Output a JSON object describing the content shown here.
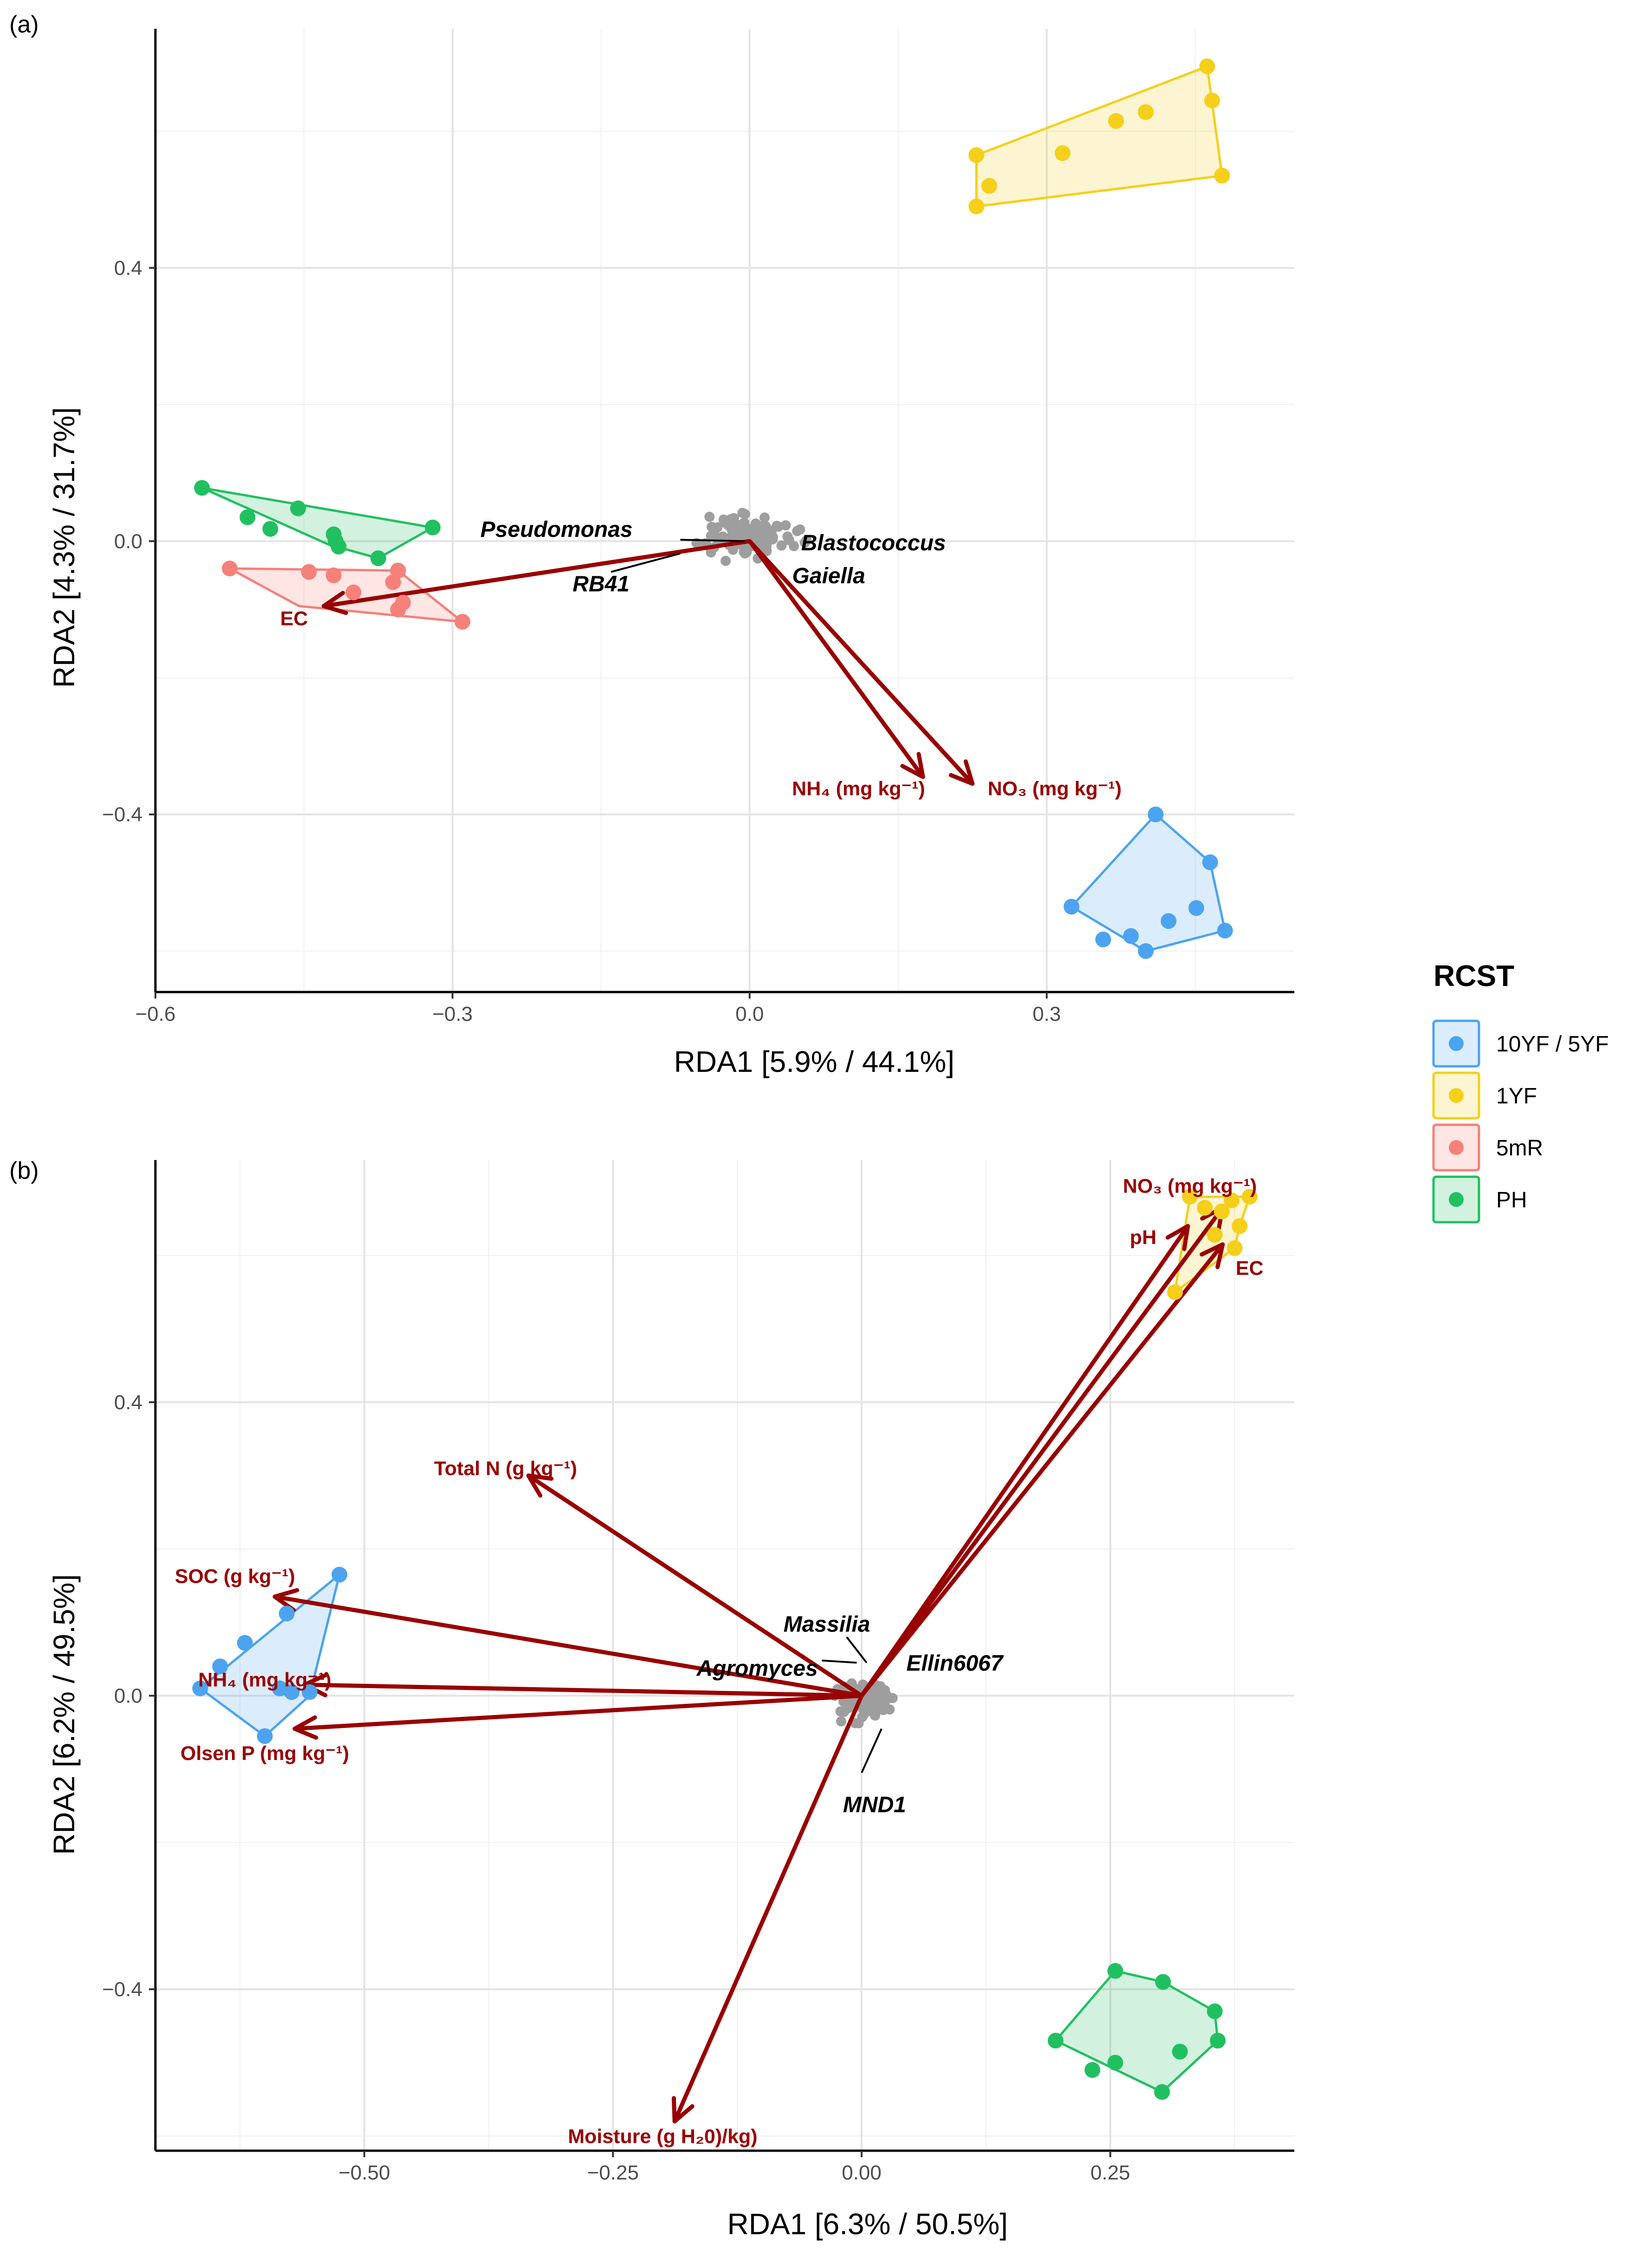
{
  "legend": {
    "title": "RCST",
    "entries": [
      {
        "label": "10YF / 5YF",
        "color": "#4CA3F0"
      },
      {
        "label": "1YF",
        "color": "#F5CF19"
      },
      {
        "label": "5mR",
        "color": "#F6807A"
      },
      {
        "label": "PH",
        "color": "#20C060"
      }
    ]
  },
  "colors": {
    "arrow": "#990000",
    "species": "#9E9E9E",
    "leader": "#000000"
  },
  "chart_data": [
    {
      "type": "scatter",
      "panel_label": "(a)",
      "xlabel": "RDA1 [5.9% / 44.1%]",
      "ylabel": "RDA2 [4.3% / 31.7%]",
      "xlim": [
        -0.6,
        0.55
      ],
      "ylim": [
        -0.66,
        0.75
      ],
      "xticks": [
        -0.6,
        -0.3,
        0.0,
        0.3
      ],
      "xtick_labels": [
        "−0.6",
        "−0.3",
        "0.0",
        "0.3"
      ],
      "yticks": [
        -0.4,
        0.0,
        0.4
      ],
      "ytick_labels": [
        "−0.4",
        "0.0",
        "0.4"
      ],
      "xminor": [
        -0.45,
        -0.15,
        0.15,
        0.45
      ],
      "yminor": [
        -0.6,
        -0.2,
        0.2,
        0.6
      ],
      "groups": [
        {
          "name": "10YF / 5YF",
          "hull": [
            [
              0.41,
              -0.4
            ],
            [
              0.465,
              -0.47
            ],
            [
              0.48,
              -0.57
            ],
            [
              0.4,
              -0.6
            ],
            [
              0.325,
              -0.535
            ]
          ],
          "points": [
            [
              0.41,
              -0.4
            ],
            [
              0.465,
              -0.47
            ],
            [
              0.48,
              -0.57
            ],
            [
              0.4,
              -0.6
            ],
            [
              0.325,
              -0.535
            ],
            [
              0.357,
              -0.583
            ],
            [
              0.423,
              -0.556
            ],
            [
              0.451,
              -0.537
            ],
            [
              0.385,
              -0.578
            ]
          ]
        },
        {
          "name": "1YF",
          "hull": [
            [
              0.229,
              0.565
            ],
            [
              0.462,
              0.695
            ],
            [
              0.477,
              0.535
            ],
            [
              0.229,
              0.49
            ]
          ],
          "points": [
            [
              0.229,
              0.565
            ],
            [
              0.462,
              0.695
            ],
            [
              0.467,
              0.645
            ],
            [
              0.477,
              0.535
            ],
            [
              0.229,
              0.49
            ],
            [
              0.242,
              0.52
            ],
            [
              0.316,
              0.568
            ],
            [
              0.37,
              0.615
            ],
            [
              0.4,
              0.628
            ]
          ]
        },
        {
          "name": "5mR",
          "hull": [
            [
              -0.525,
              -0.04
            ],
            [
              -0.355,
              -0.043
            ],
            [
              -0.29,
              -0.118
            ],
            [
              -0.455,
              -0.095
            ]
          ],
          "points": [
            [
              -0.525,
              -0.04
            ],
            [
              -0.445,
              -0.045
            ],
            [
              -0.4,
              -0.075
            ],
            [
              -0.36,
              -0.06
            ],
            [
              -0.355,
              -0.043
            ],
            [
              -0.29,
              -0.118
            ],
            [
              -0.355,
              -0.1
            ],
            [
              -0.35,
              -0.09
            ],
            [
              -0.42,
              -0.05
            ]
          ]
        },
        {
          "name": "PH",
          "hull": [
            [
              -0.553,
              0.078
            ],
            [
              -0.32,
              0.02
            ],
            [
              -0.375,
              -0.025
            ],
            [
              -0.425,
              -0.005
            ]
          ],
          "points": [
            [
              -0.553,
              0.078
            ],
            [
              -0.507,
              0.035
            ],
            [
              -0.484,
              0.018
            ],
            [
              -0.456,
              0.048
            ],
            [
              -0.42,
              0.01
            ],
            [
              -0.418,
              0.0
            ],
            [
              -0.415,
              -0.008
            ],
            [
              -0.375,
              -0.025
            ],
            [
              -0.32,
              0.02
            ]
          ]
        }
      ],
      "arrows": [
        {
          "label": "EC",
          "end": [
            -0.43,
            -0.095
          ],
          "label_at": [
            -0.46,
            -0.113
          ]
        },
        {
          "label": "NH₄ (mg kg⁻¹)",
          "end": [
            0.175,
            -0.345
          ],
          "label_at": [
            0.11,
            -0.362
          ]
        },
        {
          "label": "NO₃ (mg kg⁻¹)",
          "end": [
            0.225,
            -0.355
          ],
          "label_at": [
            0.308,
            -0.362
          ]
        }
      ],
      "species": {
        "center": [
          0.0,
          0.01
        ],
        "spread": [
          0.045,
          0.04
        ],
        "count": 120
      },
      "taxa": [
        {
          "label": "Pseudomonas",
          "at": [
            -0.195,
            0.018
          ],
          "anchor": "middle",
          "line": [
            [
              -0.07,
              0.002
            ],
            [
              -0.005,
              0.0
            ]
          ]
        },
        {
          "label": "RB41",
          "at": [
            -0.15,
            -0.062
          ],
          "anchor": "middle",
          "line": [
            [
              -0.14,
              -0.045
            ],
            [
              -0.07,
              -0.018
            ]
          ]
        },
        {
          "label": "Blastococcus",
          "at": [
            0.052,
            -0.002
          ],
          "anchor": "start",
          "line": null
        },
        {
          "label": "Gaiella",
          "at": [
            0.043,
            -0.05
          ],
          "anchor": "start",
          "line": null
        }
      ]
    },
    {
      "type": "scatter",
      "panel_label": "(b)",
      "xlabel": "RDA1 [6.3% / 50.5%]",
      "ylabel": "RDA2 [6.2% / 49.5%]",
      "xlim": [
        -0.71,
        0.435
      ],
      "ylim": [
        -0.62,
        0.73
      ],
      "xticks": [
        -0.5,
        -0.25,
        0.0,
        0.25
      ],
      "xtick_labels": [
        "−0.50",
        "−0.25",
        "0.00",
        "0.25"
      ],
      "yticks": [
        -0.4,
        0.0,
        0.4
      ],
      "ytick_labels": [
        "−0.4",
        "0.0",
        "0.4"
      ],
      "xminor": [
        -0.625,
        -0.375,
        -0.125,
        0.125,
        0.375
      ],
      "yminor": [
        -0.6,
        -0.2,
        0.2,
        0.6
      ],
      "groups": [
        {
          "name": "10YF / 5YF",
          "hull": [
            [
              -0.525,
              0.165
            ],
            [
              -0.555,
              0.0
            ],
            [
              -0.6,
              -0.055
            ],
            [
              -0.665,
              0.01
            ]
          ],
          "points": [
            [
              -0.525,
              0.165
            ],
            [
              -0.578,
              0.112
            ],
            [
              -0.62,
              0.072
            ],
            [
              -0.645,
              0.04
            ],
            [
              -0.665,
              0.01
            ],
            [
              -0.6,
              -0.055
            ],
            [
              -0.573,
              0.005
            ],
            [
              -0.555,
              0.005
            ],
            [
              -0.585,
              0.01
            ]
          ]
        },
        {
          "name": "1YF",
          "hull": [
            [
              0.33,
              0.68
            ],
            [
              0.39,
              0.68
            ],
            [
              0.38,
              0.64
            ],
            [
              0.375,
              0.61
            ],
            [
              0.315,
              0.55
            ]
          ],
          "points": [
            [
              0.33,
              0.68
            ],
            [
              0.39,
              0.68
            ],
            [
              0.372,
              0.675
            ],
            [
              0.38,
              0.64
            ],
            [
              0.375,
              0.61
            ],
            [
              0.315,
              0.55
            ],
            [
              0.355,
              0.628
            ],
            [
              0.345,
              0.665
            ],
            [
              0.362,
              0.66
            ]
          ]
        },
        {
          "name": "PH",
          "hull": [
            [
              0.255,
              -0.375
            ],
            [
              0.303,
              -0.39
            ],
            [
              0.355,
              -0.43
            ],
            [
              0.358,
              -0.47
            ],
            [
              0.302,
              -0.54
            ],
            [
              0.195,
              -0.47
            ]
          ],
          "points": [
            [
              0.255,
              -0.375
            ],
            [
              0.303,
              -0.39
            ],
            [
              0.355,
              -0.43
            ],
            [
              0.358,
              -0.47
            ],
            [
              0.302,
              -0.54
            ],
            [
              0.195,
              -0.47
            ],
            [
              0.232,
              -0.51
            ],
            [
              0.255,
              -0.5
            ],
            [
              0.32,
              -0.485
            ]
          ]
        }
      ],
      "arrows": [
        {
          "label": "NO₃ (mg kg⁻¹)",
          "end": [
            0.363,
            0.665
          ],
          "label_at": [
            0.33,
            0.695
          ]
        },
        {
          "label": "pH",
          "end": [
            0.328,
            0.64
          ],
          "label_at": [
            0.283,
            0.625
          ]
        },
        {
          "label": "EC",
          "end": [
            0.363,
            0.615
          ],
          "label_at": [
            0.39,
            0.583
          ]
        },
        {
          "label": "Total N (g kg⁻¹)",
          "end": [
            -0.335,
            0.3
          ],
          "label_at": [
            -0.358,
            0.31
          ]
        },
        {
          "label": "SOC (g kg⁻¹)",
          "end": [
            -0.59,
            0.135
          ],
          "label_at": [
            -0.63,
            0.163
          ]
        },
        {
          "label": "NH₄ (mg kg⁻¹)",
          "end": [
            -0.56,
            0.015
          ],
          "label_at": [
            -0.6,
            0.022
          ]
        },
        {
          "label": "Olsen P (mg kg⁻¹)",
          "end": [
            -0.57,
            -0.045
          ],
          "label_at": [
            -0.6,
            -0.078
          ]
        },
        {
          "label": "Moisture (g H₂0)/kg)",
          "end": [
            -0.188,
            -0.58
          ],
          "label_at": [
            -0.2,
            -0.6
          ]
        }
      ],
      "species": {
        "center": [
          0.005,
          -0.005
        ],
        "spread": [
          0.03,
          0.03
        ],
        "count": 120
      },
      "taxa": [
        {
          "label": "Massilia",
          "at": [
            -0.035,
            0.098
          ],
          "anchor": "middle",
          "line": [
            [
              -0.015,
              0.08
            ],
            [
              0.005,
              0.045
            ]
          ]
        },
        {
          "label": "Agromyces",
          "at": [
            -0.105,
            0.038
          ],
          "anchor": "middle",
          "line": [
            [
              -0.04,
              0.048
            ],
            [
              -0.005,
              0.045
            ]
          ]
        },
        {
          "label": "Ellin6067",
          "at": [
            0.045,
            0.045
          ],
          "anchor": "start",
          "line": null
        },
        {
          "label": "MND1",
          "at": [
            0.013,
            -0.148
          ],
          "anchor": "middle",
          "line": [
            [
              0.0,
              -0.105
            ],
            [
              0.02,
              -0.045
            ]
          ]
        }
      ]
    }
  ]
}
